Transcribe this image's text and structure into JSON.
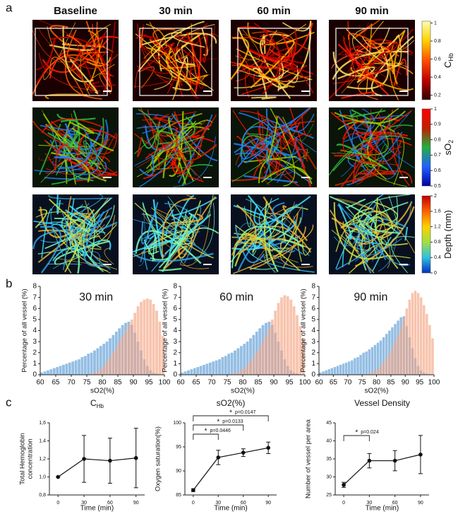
{
  "panel_labels": [
    "a",
    "b",
    "c"
  ],
  "image_grid": {
    "columns": [
      "Baseline",
      "30 min",
      "60 min",
      "90 min"
    ],
    "colorbars": [
      {
        "label": "C",
        "label_sub": "Hb",
        "lim": [
          0.15,
          1.02
        ],
        "ticks": [
          1,
          0.8,
          0.6,
          0.4,
          0.2
        ],
        "colors": [
          "#ffffb0",
          "#ffd000",
          "#ff5000",
          "#c00000",
          "#300000"
        ]
      },
      {
        "label": "sO",
        "label_sub": "2",
        "lim": [
          0.5,
          1
        ],
        "ticks": [
          1,
          0.9,
          0.8,
          0.7,
          0.6,
          0.5
        ],
        "colors": [
          "#ff0000",
          "#c02000",
          "#20b040",
          "#2060ff",
          "#0000a0"
        ]
      },
      {
        "label": "Depth (mm)",
        "lim": [
          0,
          2
        ],
        "ticks": [
          2,
          1.6,
          1.2,
          0.8,
          0.4,
          0
        ],
        "colors": [
          "#c00000",
          "#ff6000",
          "#ffd000",
          "#a0e040",
          "#30c0e0",
          "#0030c0"
        ]
      }
    ]
  },
  "chart_data": [
    {
      "type": "histogram",
      "title": "30 min",
      "ylabel": "Percentage of all vessel (%)",
      "xlabel": "sO2(%)",
      "bins": [
        60,
        61,
        62,
        63,
        64,
        65,
        66,
        67,
        68,
        69,
        70,
        71,
        72,
        73,
        74,
        75,
        76,
        77,
        78,
        79,
        80,
        81,
        82,
        83,
        84,
        85,
        86,
        87,
        88,
        89,
        90,
        91,
        92,
        93,
        94,
        95,
        96,
        97,
        98,
        99,
        100
      ],
      "series": [
        {
          "color": "#5b9bd5",
          "values": [
            0.2,
            0.3,
            0.4,
            0.5,
            0.6,
            0.7,
            0.8,
            0.9,
            1.0,
            1.1,
            1.2,
            1.3,
            1.4,
            1.6,
            1.7,
            1.9,
            2.0,
            2.2,
            2.4,
            2.6,
            2.8,
            3.0,
            3.3,
            3.6,
            3.9,
            4.2,
            4.5,
            4.7,
            4.8,
            4.5,
            3.8,
            3.0,
            2.2,
            1.4,
            0.8,
            0.4,
            0.2,
            0.1,
            0.05,
            0
          ]
        },
        {
          "color": "#f4a582",
          "values": [
            0,
            0,
            0,
            0,
            0,
            0,
            0,
            0,
            0,
            0,
            0,
            0,
            0,
            0,
            0,
            0.05,
            0.1,
            0.2,
            0.3,
            0.5,
            0.8,
            1.2,
            1.6,
            2.0,
            2.5,
            3.0,
            3.5,
            4.0,
            4.5,
            5.0,
            5.6,
            6.2,
            6.6,
            6.8,
            6.9,
            6.8,
            6.4,
            5.8,
            4.8,
            3.5
          ]
        }
      ],
      "xlim": [
        60,
        100
      ],
      "xticks": [
        60,
        65,
        70,
        75,
        80,
        85,
        90,
        95,
        100
      ],
      "ylim": [
        0,
        8
      ],
      "yticks": [
        0,
        1,
        2,
        3,
        4,
        5,
        6,
        7,
        8
      ]
    },
    {
      "type": "histogram",
      "title": "60 min",
      "ylabel": "Percentage of all vessel (%)",
      "xlabel": "sO2(%)",
      "bins": [
        60,
        61,
        62,
        63,
        64,
        65,
        66,
        67,
        68,
        69,
        70,
        71,
        72,
        73,
        74,
        75,
        76,
        77,
        78,
        79,
        80,
        81,
        82,
        83,
        84,
        85,
        86,
        87,
        88,
        89,
        90,
        91,
        92,
        93,
        94,
        95,
        96,
        97,
        98,
        99,
        100
      ],
      "series": [
        {
          "color": "#5b9bd5",
          "values": [
            0.2,
            0.3,
            0.4,
            0.5,
            0.6,
            0.7,
            0.8,
            0.9,
            1.0,
            1.1,
            1.2,
            1.3,
            1.4,
            1.6,
            1.7,
            1.9,
            2.0,
            2.2,
            2.4,
            2.6,
            2.8,
            3.0,
            3.3,
            3.6,
            3.9,
            4.2,
            4.5,
            4.7,
            4.8,
            4.5,
            3.8,
            3.0,
            2.2,
            1.4,
            0.8,
            0.4,
            0.2,
            0.1,
            0.05,
            0
          ]
        },
        {
          "color": "#f4a582",
          "values": [
            0,
            0,
            0,
            0,
            0,
            0,
            0,
            0,
            0,
            0,
            0,
            0,
            0,
            0,
            0,
            0.05,
            0.1,
            0.15,
            0.25,
            0.4,
            0.6,
            0.9,
            1.2,
            1.6,
            2.0,
            2.5,
            3.0,
            3.6,
            4.2,
            5.0,
            5.8,
            6.5,
            7.0,
            7.2,
            7.1,
            6.8,
            6.2,
            5.4,
            4.4,
            3.2
          ]
        }
      ],
      "xlim": [
        60,
        100
      ],
      "xticks": [
        60,
        65,
        70,
        75,
        80,
        85,
        90,
        95,
        100
      ],
      "ylim": [
        0,
        8
      ],
      "yticks": [
        0,
        1,
        2,
        3,
        4,
        5,
        6,
        7,
        8
      ]
    },
    {
      "type": "histogram",
      "title": "90 min",
      "ylabel": "Percentage of all vessel (%)",
      "xlabel": "sO2(%)",
      "bins": [
        60,
        61,
        62,
        63,
        64,
        65,
        66,
        67,
        68,
        69,
        70,
        71,
        72,
        73,
        74,
        75,
        76,
        77,
        78,
        79,
        80,
        81,
        82,
        83,
        84,
        85,
        86,
        87,
        88,
        89,
        90,
        91,
        92,
        93,
        94,
        95,
        96,
        97,
        98,
        99,
        100
      ],
      "series": [
        {
          "color": "#5b9bd5",
          "values": [
            0.2,
            0.3,
            0.4,
            0.5,
            0.6,
            0.7,
            0.8,
            0.9,
            1.0,
            1.1,
            1.2,
            1.3,
            1.5,
            1.6,
            1.8,
            2.0,
            2.1,
            2.3,
            2.5,
            2.7,
            2.9,
            3.1,
            3.4,
            3.7,
            4.0,
            4.3,
            4.6,
            4.9,
            5.2,
            5.3,
            4.4,
            3.4,
            2.4,
            1.5,
            0.8,
            0.4,
            0.2,
            0.1,
            0.05,
            0
          ]
        },
        {
          "color": "#f4a582",
          "values": [
            0,
            0,
            0,
            0,
            0,
            0,
            0,
            0,
            0,
            0,
            0,
            0,
            0,
            0,
            0,
            0.05,
            0.1,
            0.15,
            0.2,
            0.35,
            0.5,
            0.8,
            1.1,
            1.5,
            1.9,
            2.4,
            3.0,
            3.6,
            4.3,
            5.1,
            6.0,
            6.8,
            7.4,
            7.6,
            7.4,
            7.0,
            6.3,
            5.5,
            4.5,
            3.3
          ]
        }
      ],
      "xlim": [
        60,
        100
      ],
      "xticks": [
        60,
        65,
        70,
        75,
        80,
        85,
        90,
        95,
        100
      ],
      "ylim": [
        0,
        8
      ],
      "yticks": [
        0,
        1,
        2,
        3,
        4,
        5,
        6,
        7,
        8
      ]
    },
    {
      "type": "line",
      "title": "C",
      "title_sub": "Hb",
      "ylabel": [
        "Total Hemoglobin",
        "concentration"
      ],
      "xlabel": "Time (min)",
      "x": [
        0,
        30,
        60,
        90
      ],
      "values": [
        1.0,
        1.2,
        1.18,
        1.21
      ],
      "errors": [
        0,
        0.26,
        0.25,
        0.33
      ],
      "color": "#111111",
      "xlim": [
        -10,
        100
      ],
      "xticks": [
        0,
        30,
        60,
        90
      ],
      "ylim": [
        0.8,
        1.6
      ],
      "yticks": [
        {
          "value": 0.8,
          "label": "0,8"
        },
        {
          "value": 1.0,
          "label": "1,0"
        },
        {
          "value": 1.2,
          "label": "1,2"
        },
        {
          "value": 1.4,
          "label": "1,4"
        },
        {
          "value": 1.6,
          "label": "1,6"
        }
      ]
    },
    {
      "type": "line",
      "title": "sO2(%)",
      "ylabel": [
        "Oxygen saturation(%)"
      ],
      "xlabel": "Time (min)",
      "x": [
        0,
        30,
        60,
        90
      ],
      "values": [
        86.0,
        92.8,
        93.8,
        94.8
      ],
      "errors": [
        0.3,
        1.5,
        0.8,
        1.2
      ],
      "color": "#111111",
      "xlim": [
        -10,
        100
      ],
      "xticks": [
        0,
        30,
        60,
        90
      ],
      "ylim": [
        85,
        100
      ],
      "yticks": [
        85,
        90,
        95,
        100
      ],
      "annotations": [
        {
          "star": "*",
          "text": "p=0.0446",
          "from": 0,
          "to": 30
        },
        {
          "star": "*",
          "text": "p=0.0133",
          "from": 0,
          "to": 60
        },
        {
          "star": "*",
          "text": "p=0.0147",
          "from": 0,
          "to": 90
        }
      ]
    },
    {
      "type": "line",
      "title": "Vessel Density",
      "ylabel": [
        "Number of vessel per area"
      ],
      "xlabel": "Time (min)",
      "x": [
        0,
        30,
        60,
        90
      ],
      "values": [
        27.8,
        34.5,
        34.5,
        36.2
      ],
      "errors": [
        0.7,
        2.0,
        2.8,
        5.3
      ],
      "color": "#111111",
      "xlim": [
        -10,
        100
      ],
      "xticks": [
        0,
        30,
        60,
        90
      ],
      "ylim": [
        25,
        45
      ],
      "yticks": [
        25,
        30,
        35,
        40,
        45
      ],
      "annotations": [
        {
          "star": "*",
          "text": "p=0.024",
          "from": 0,
          "to": 30
        }
      ]
    }
  ]
}
